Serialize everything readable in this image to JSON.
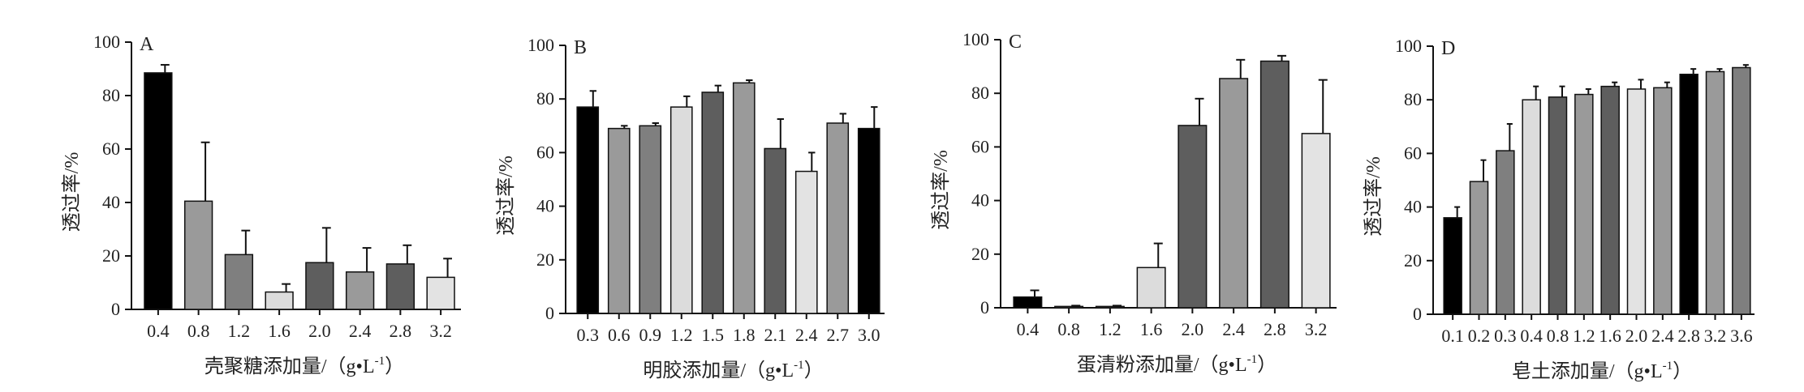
{
  "chart_data": [
    {
      "type": "bar",
      "panel_label": "A",
      "xlabel": "壳聚糖添加量/（g•L",
      "xlabel_sup": "-1",
      "xlabel_close": "）",
      "ylabel": "透过率/%",
      "ylim": [
        0,
        100
      ],
      "yticks": [
        "0",
        "20",
        "40",
        "60",
        "80",
        "100"
      ],
      "categories": [
        "0.4",
        "0.8",
        "1.2",
        "1.6",
        "2.0",
        "2.4",
        "2.8",
        "3.2"
      ],
      "values": [
        88.5,
        40.5,
        20.5,
        6.5,
        17.5,
        14,
        17,
        12
      ],
      "errors": [
        3,
        22,
        9,
        3,
        13,
        9,
        7,
        7
      ],
      "colors": [
        "#000000",
        "#9a9a9a",
        "#7f7f7f",
        "#dcdcdc",
        "#5e5e5e",
        "#9a9a9a",
        "#5e5e5e",
        "#e3e3e3"
      ],
      "grid": false
    },
    {
      "type": "bar",
      "panel_label": "B",
      "xlabel": "明胶添加量/（g•L",
      "xlabel_sup": "-1",
      "xlabel_close": "）",
      "ylabel": "透过率/%",
      "ylim": [
        0,
        100
      ],
      "yticks": [
        "0",
        "20",
        "40",
        "60",
        "80",
        "100"
      ],
      "categories": [
        "0.3",
        "0.6",
        "0.9",
        "1.2",
        "1.5",
        "1.8",
        "2.1",
        "2.4",
        "2.7",
        "3.0"
      ],
      "values": [
        77,
        69,
        70,
        77,
        82.5,
        86,
        61.5,
        53,
        71,
        69
      ],
      "errors": [
        6,
        1,
        1,
        4,
        2.5,
        1,
        11,
        7,
        3.5,
        8
      ],
      "colors": [
        "#000000",
        "#9a9a9a",
        "#7f7f7f",
        "#dcdcdc",
        "#5e5e5e",
        "#9a9a9a",
        "#5e5e5e",
        "#e3e3e3",
        "#9a9a9a",
        "#000000"
      ],
      "grid": false
    },
    {
      "type": "bar",
      "panel_label": "C",
      "xlabel": "蛋清粉添加量/（g•L",
      "xlabel_sup": "-1",
      "xlabel_close": "）",
      "ylabel": "透过率/%",
      "ylim": [
        0,
        100
      ],
      "yticks": [
        "0",
        "20",
        "40",
        "60",
        "80",
        "100"
      ],
      "categories": [
        "0.4",
        "0.8",
        "1.2",
        "1.6",
        "2.0",
        "2.4",
        "2.8",
        "3.2"
      ],
      "values": [
        4,
        0.5,
        0.5,
        15,
        68,
        85.5,
        92,
        65
      ],
      "errors": [
        2.5,
        0.3,
        0.3,
        9,
        10,
        7,
        2,
        20
      ],
      "colors": [
        "#000000",
        "#9a9a9a",
        "#7f7f7f",
        "#dcdcdc",
        "#5e5e5e",
        "#9a9a9a",
        "#5e5e5e",
        "#e3e3e3"
      ],
      "grid": false
    },
    {
      "type": "bar",
      "panel_label": "D",
      "xlabel": "皂土添加量/（g•L",
      "xlabel_sup": "-1",
      "xlabel_close": "）",
      "ylabel": "透过率/%",
      "ylim": [
        0,
        100
      ],
      "yticks": [
        "0",
        "20",
        "40",
        "60",
        "80",
        "100"
      ],
      "categories": [
        "0.1",
        "0.2",
        "0.3",
        "0.4",
        "0.8",
        "1.2",
        "1.6",
        "2.0",
        "2.4",
        "2.8",
        "3.2",
        "3.6"
      ],
      "values": [
        36,
        49.5,
        61,
        80,
        81,
        82,
        85,
        84,
        84.5,
        89.5,
        90.5,
        92
      ],
      "errors": [
        4,
        8,
        10,
        5,
        4,
        2,
        1.5,
        3.5,
        2,
        2,
        1,
        1
      ],
      "colors": [
        "#000000",
        "#9a9a9a",
        "#7f7f7f",
        "#dcdcdc",
        "#5e5e5e",
        "#9a9a9a",
        "#5e5e5e",
        "#e3e3e3",
        "#9a9a9a",
        "#000000",
        "#9a9a9a",
        "#7f7f7f"
      ],
      "grid": false
    }
  ]
}
